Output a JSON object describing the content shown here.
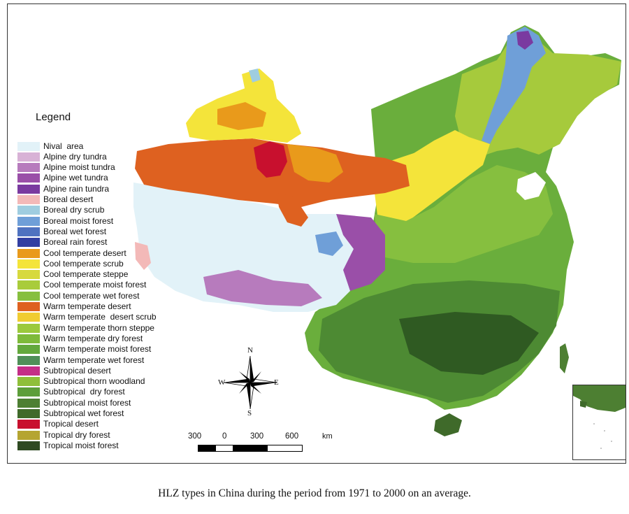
{
  "legend": {
    "title": "Legend",
    "items": [
      {
        "label": "Nival  area",
        "color": "#e2f2f8"
      },
      {
        "label": "Alpine dry tundra",
        "color": "#d8b2d6"
      },
      {
        "label": "Alpine moist tundra",
        "color": "#b77bbd"
      },
      {
        "label": "Alpine wet tundra",
        "color": "#9a4fa8"
      },
      {
        "label": "Alpine rain tundra",
        "color": "#7a3aa0"
      },
      {
        "label": "Boreal desert",
        "color": "#f3b9b8"
      },
      {
        "label": "Boreal dry scrub",
        "color": "#9fcde0"
      },
      {
        "label": "Boreal moist forest",
        "color": "#6f9fd8"
      },
      {
        "label": "Boreal wet forest",
        "color": "#4f72c0"
      },
      {
        "label": "Boreal rain forest",
        "color": "#323fa2"
      },
      {
        "label": "Cool temperate desert",
        "color": "#e99a1b"
      },
      {
        "label": "Cool temperate scrub",
        "color": "#f4e43a"
      },
      {
        "label": "Cool temperate steppe",
        "color": "#d7d93e"
      },
      {
        "label": "Cool temperate moist forest",
        "color": "#a9cc3b"
      },
      {
        "label": "Cool temperate wet forest",
        "color": "#86bf3f"
      },
      {
        "label": "Warm temperate desert",
        "color": "#de6120"
      },
      {
        "label": "Warm temperate  desert scrub",
        "color": "#f0cc32"
      },
      {
        "label": "Warm temperate thorn steppe",
        "color": "#9bc93c"
      },
      {
        "label": "Warm temperate dry forest",
        "color": "#7eba3a"
      },
      {
        "label": "Warm temperate moist forest",
        "color": "#63a83c"
      },
      {
        "label": "Warm temperate wet forest",
        "color": "#4f8f58"
      },
      {
        "label": "Subtropical desert",
        "color": "#c42e87"
      },
      {
        "label": "Subtropical thorn woodland",
        "color": "#8fbf3a"
      },
      {
        "label": "Subtropical  dry forest",
        "color": "#5d9e3a"
      },
      {
        "label": "Subtropical moist forest",
        "color": "#4d7f32"
      },
      {
        "label": "Subtropical wet forest",
        "color": "#3f6a2a"
      },
      {
        "label": "Tropical desert",
        "color": "#c8102e"
      },
      {
        "label": "Tropical dry forest",
        "color": "#b5a531"
      },
      {
        "label": "Tropical moist forest",
        "color": "#2f4a22"
      }
    ]
  },
  "compass": {
    "n": "N",
    "s": "S",
    "e": "E",
    "w": "W"
  },
  "scale": {
    "ticks": [
      "300",
      "0",
      "300",
      "600"
    ],
    "unit": "km"
  },
  "caption": "HLZ types in China during the period from 1971 to 2000 on an average."
}
